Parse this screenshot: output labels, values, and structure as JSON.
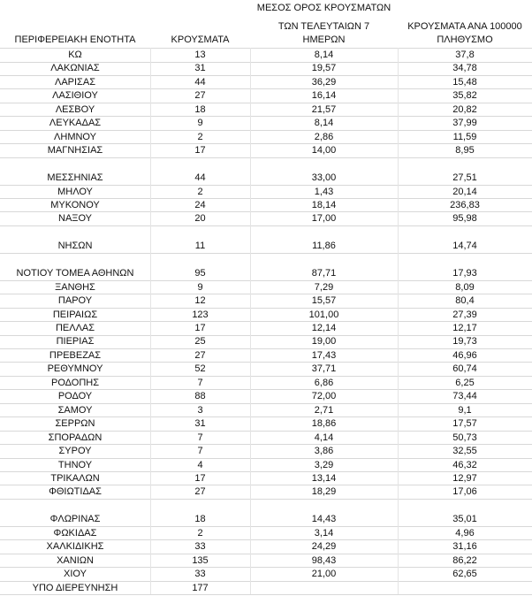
{
  "table": {
    "header": [
      [
        "ΠΕΡΙΦΕΡΕΙΑΚΗ ΕΝΟΤΗΤΑ"
      ],
      [
        "ΚΡΟΥΣΜΑΤΑ"
      ],
      [
        "ΜΕΣΟΣ ΟΡΟΣ ΚΡΟΥΣΜΑΤΩΝ",
        "ΤΩΝ ΤΕΛΕΥΤΑΙΩΝ 7",
        "ΗΜΕΡΩΝ"
      ],
      [
        "ΚΡΟΥΣΜΑΤΑ ΑΝΑ 100000",
        "ΠΛΗΘΥΣΜΟ"
      ]
    ],
    "sections": [
      [
        [
          "ΚΩ",
          "13",
          "8,14",
          "37,8"
        ],
        [
          "ΛΑΚΩΝΙΑΣ",
          "31",
          "19,57",
          "34,78"
        ],
        [
          "ΛΑΡΙΣΑΣ",
          "44",
          "36,29",
          "15,48"
        ],
        [
          "ΛΑΣΙΘΙΟΥ",
          "27",
          "16,14",
          "35,82"
        ],
        [
          "ΛΕΣΒΟΥ",
          "18",
          "21,57",
          "20,82"
        ],
        [
          "ΛΕΥΚΑΔΑΣ",
          "9",
          "8,14",
          "37,99"
        ],
        [
          "ΛΗΜΝΟΥ",
          "2",
          "2,86",
          "11,59"
        ],
        [
          "ΜΑΓΝΗΣΙΑΣ",
          "17",
          "14,00",
          "8,95"
        ]
      ],
      [
        [
          "ΜΕΣΣΗΝΙΑΣ",
          "44",
          "33,00",
          "27,51"
        ],
        [
          "ΜΗΛΟΥ",
          "2",
          "1,43",
          "20,14"
        ],
        [
          "ΜΥΚΟΝΟΥ",
          "24",
          "18,14",
          "236,83"
        ],
        [
          "ΝΑΞΟΥ",
          "20",
          "17,00",
          "95,98"
        ]
      ],
      [
        [
          "ΝΗΣΩΝ",
          "11",
          "11,86",
          "14,74"
        ]
      ],
      [
        [
          "ΝΟΤΙΟΥ ΤΟΜΕΑ ΑΘΗΝΩΝ",
          "95",
          "87,71",
          "17,93"
        ],
        [
          "ΞΑΝΘΗΣ",
          "9",
          "7,29",
          "8,09"
        ],
        [
          "ΠΑΡΟΥ",
          "12",
          "15,57",
          "80,4"
        ],
        [
          "ΠΕΙΡΑΙΩΣ",
          "123",
          "101,00",
          "27,39"
        ],
        [
          "ΠΕΛΛΑΣ",
          "17",
          "12,14",
          "12,17"
        ],
        [
          "ΠΙΕΡΙΑΣ",
          "25",
          "19,00",
          "19,73"
        ],
        [
          "ΠΡΕΒΕΖΑΣ",
          "27",
          "17,43",
          "46,96"
        ],
        [
          "ΡΕΘΥΜΝΟΥ",
          "52",
          "37,71",
          "60,74"
        ],
        [
          "ΡΟΔΟΠΗΣ",
          "7",
          "6,86",
          "6,25"
        ],
        [
          "ΡΟΔΟΥ",
          "88",
          "72,00",
          "73,44"
        ],
        [
          "ΣΑΜΟΥ",
          "3",
          "2,71",
          "9,1"
        ],
        [
          "ΣΕΡΡΩΝ",
          "31",
          "18,86",
          "17,57"
        ],
        [
          "ΣΠΟΡΑΔΩΝ",
          "7",
          "4,14",
          "50,73"
        ],
        [
          "ΣΥΡΟΥ",
          "7",
          "3,86",
          "32,55"
        ],
        [
          "ΤΗΝΟΥ",
          "4",
          "3,29",
          "46,32"
        ],
        [
          "ΤΡΙΚΑΛΩΝ",
          "17",
          "13,14",
          "12,97"
        ],
        [
          "ΦΘΙΩΤΙΔΑΣ",
          "27",
          "18,29",
          "17,06"
        ]
      ],
      [
        [
          "ΦΛΩΡΙΝΑΣ",
          "18",
          "14,43",
          "35,01"
        ],
        [
          "ΦΩΚΙΔΑΣ",
          "2",
          "3,14",
          "4,96"
        ],
        [
          "ΧΑΛΚΙΔΙΚΗΣ",
          "33",
          "24,29",
          "31,16"
        ],
        [
          "ΧΑΝΙΩΝ",
          "135",
          "98,43",
          "86,22"
        ],
        [
          "ΧΙΟΥ",
          "33",
          "21,00",
          "62,65"
        ],
        [
          "ΥΠΟ ΔΙΕΡΕΥΝΗΣΗ",
          "177"
        ]
      ]
    ]
  }
}
